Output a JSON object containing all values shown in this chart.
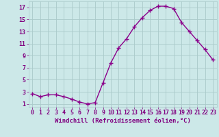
{
  "x": [
    0,
    1,
    2,
    3,
    4,
    5,
    6,
    7,
    8,
    9,
    10,
    11,
    12,
    13,
    14,
    15,
    16,
    17,
    18,
    19,
    20,
    21,
    22,
    23
  ],
  "y": [
    2.7,
    2.2,
    2.5,
    2.5,
    2.2,
    1.8,
    1.3,
    1.0,
    1.2,
    4.5,
    7.8,
    10.3,
    11.8,
    13.8,
    15.3,
    16.5,
    17.2,
    17.2,
    16.8,
    14.5,
    13.0,
    11.5,
    10.0,
    8.3
  ],
  "line_color": "#8B008B",
  "marker": "+",
  "marker_size": 4,
  "marker_edge_width": 1.0,
  "bg_color": "#cce8e8",
  "grid_color": "#aacaca",
  "xlabel": "Windchill (Refroidissement éolien,°C)",
  "ylabel_ticks": [
    1,
    3,
    5,
    7,
    9,
    11,
    13,
    15,
    17
  ],
  "xtick_labels": [
    "0",
    "1",
    "2",
    "3",
    "4",
    "5",
    "6",
    "7",
    "8",
    "9",
    "10",
    "11",
    "12",
    "13",
    "14",
    "15",
    "16",
    "17",
    "18",
    "19",
    "20",
    "21",
    "22",
    "23"
  ],
  "ylim": [
    0.5,
    18.0
  ],
  "xlim": [
    -0.5,
    23.5
  ],
  "tick_color": "#800080",
  "xlabel_fontsize": 6.5,
  "tick_fontsize": 6.0,
  "line_width": 1.0
}
